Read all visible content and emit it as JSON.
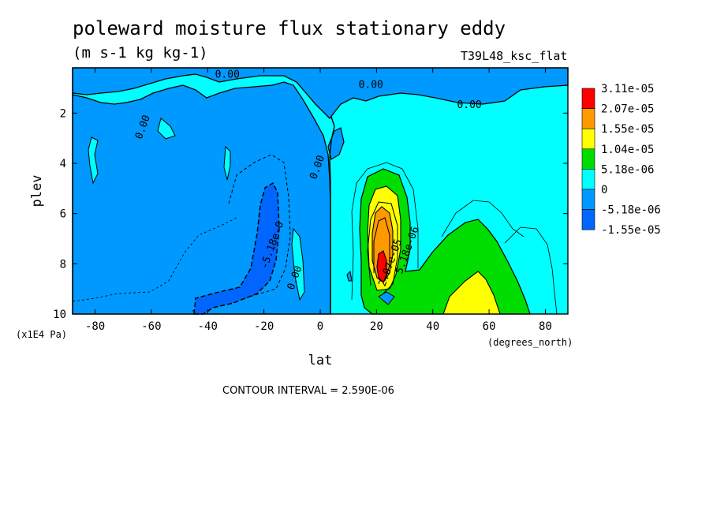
{
  "chart_data": {
    "type": "contour",
    "title": "poleward moisture flux stationary eddy",
    "subtitle": "(m s-1 kg kg-1)",
    "dataset_label": "T39L48_ksc_flat",
    "xlabel": "lat",
    "x_units": "(degrees_north)",
    "ylabel": "plev",
    "y_units": "(x1E4 Pa)",
    "xlim": [
      -88,
      88
    ],
    "ylim": [
      10,
      0.2
    ],
    "x_ticks": [
      -80,
      -60,
      -40,
      -20,
      0,
      20,
      40,
      60,
      80
    ],
    "y_ticks": [
      2,
      4,
      6,
      8,
      10
    ],
    "contour_interval_text": "CONTOUR INTERVAL = 2.590E-06",
    "legend": [
      {
        "label": "3.11e-05",
        "color": "#ff0000"
      },
      {
        "label": "2.07e-05",
        "color": "#ff9900"
      },
      {
        "label": "1.55e-05",
        "color": "#ffff00"
      },
      {
        "label": "1.04e-05",
        "color": "#00dd00"
      },
      {
        "label": "5.18e-06",
        "color": "#00ffff"
      },
      {
        "label": "0",
        "color": "#0099ff"
      },
      {
        "label": "-5.18e-06",
        "color": "#0066ff"
      },
      {
        "label": "-1.55e-05",
        "color": ""
      }
    ],
    "contour_labels": [
      {
        "text": "0.00",
        "lat": -33,
        "plev": 0.6
      },
      {
        "text": "0.00",
        "lat": 18,
        "plev": 1.0
      },
      {
        "text": "0.00",
        "lat": 53,
        "plev": 1.8
      },
      {
        "text": "0.00",
        "lat": -62,
        "plev": 2.6
      },
      {
        "text": "0.00",
        "lat": 0,
        "plev": 4.2
      },
      {
        "text": "-5.18e-0",
        "lat": -16,
        "plev": 7.3
      },
      {
        "text": "0.00",
        "lat": -8,
        "plev": 8.6
      },
      {
        "text": "2.07e-05",
        "lat": 26,
        "plev": 8.0
      },
      {
        "text": "5.18e-06",
        "lat": 32,
        "plev": 7.5
      }
    ]
  }
}
